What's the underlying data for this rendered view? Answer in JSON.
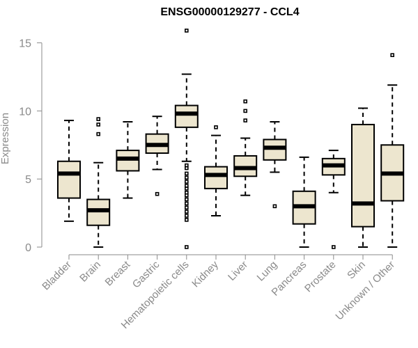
{
  "chart_data": {
    "type": "boxplot",
    "title": "ENSG00000129277 - CCL4",
    "ylabel": "Expression",
    "xlabel": "",
    "ylim": [
      0,
      16
    ],
    "yticks": [
      0,
      5,
      10,
      15
    ],
    "grid": false,
    "colors": {
      "box_fill": "#ede6cf",
      "stroke": "#000000",
      "axis": "#8a8a8a"
    },
    "categories": [
      "Bladder",
      "Brain",
      "Breast",
      "Gastric",
      "Hematopoietic cells",
      "Kidney",
      "Liver",
      "Lung",
      "Pancreas",
      "Prostate",
      "Skin",
      "Unknown / Other"
    ],
    "boxes": [
      {
        "min": 1.9,
        "q1": 3.6,
        "median": 5.4,
        "q3": 6.3,
        "max": 9.3,
        "outliers": []
      },
      {
        "min": 0.0,
        "q1": 1.6,
        "median": 2.7,
        "q3": 3.5,
        "max": 6.2,
        "outliers": [
          8.3,
          9.0,
          9.4
        ]
      },
      {
        "min": 3.6,
        "q1": 5.6,
        "median": 6.5,
        "q3": 7.1,
        "max": 9.2,
        "outliers": []
      },
      {
        "min": 5.7,
        "q1": 6.9,
        "median": 7.5,
        "q3": 8.3,
        "max": 9.6,
        "outliers": [
          3.9
        ]
      },
      {
        "min": 6.3,
        "q1": 8.8,
        "median": 9.8,
        "q3": 10.4,
        "max": 12.7,
        "outliers": [
          15.9,
          6.0,
          5.8,
          5.4,
          5.1,
          4.8,
          4.5,
          4.3,
          4.0,
          3.8,
          3.5,
          3.2,
          2.9,
          2.6,
          2.3,
          2.0,
          0.0
        ]
      },
      {
        "min": 2.3,
        "q1": 4.3,
        "median": 5.3,
        "q3": 5.9,
        "max": 8.2,
        "outliers": [
          8.8
        ]
      },
      {
        "min": 3.8,
        "q1": 5.2,
        "median": 5.8,
        "q3": 6.7,
        "max": 8.0,
        "outliers": [
          9.3,
          10.0,
          10.7
        ]
      },
      {
        "min": 5.5,
        "q1": 6.4,
        "median": 7.3,
        "q3": 7.9,
        "max": 9.2,
        "outliers": [
          3.0
        ]
      },
      {
        "min": 0.0,
        "q1": 1.7,
        "median": 3.0,
        "q3": 4.1,
        "max": 6.6,
        "outliers": []
      },
      {
        "min": 4.0,
        "q1": 5.3,
        "median": 6.0,
        "q3": 6.5,
        "max": 7.1,
        "outliers": [
          0.0
        ]
      },
      {
        "min": 0.0,
        "q1": 1.5,
        "median": 3.2,
        "q3": 9.0,
        "max": 10.2,
        "outliers": []
      },
      {
        "min": 0.0,
        "q1": 3.4,
        "median": 5.4,
        "q3": 7.5,
        "max": 11.9,
        "outliers": [
          14.1
        ]
      }
    ]
  }
}
